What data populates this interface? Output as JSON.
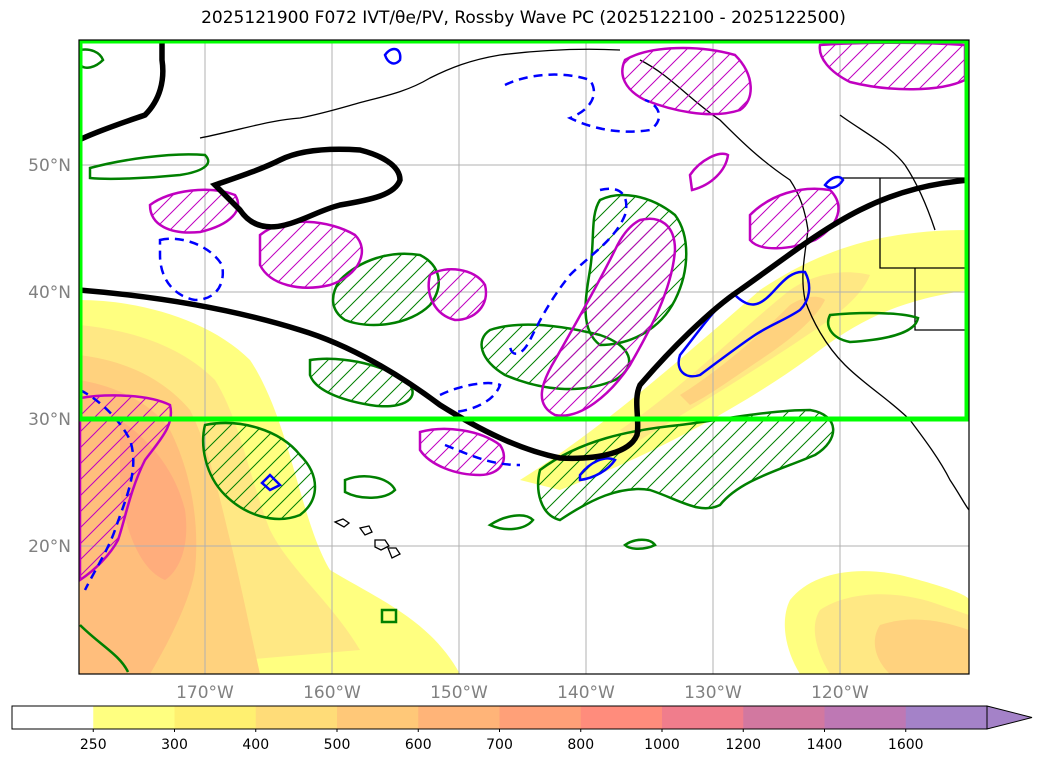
{
  "title": "2025121900 F072 IVT/θe/PV, Rossby Wave PC (2025122100 - 2025122500)",
  "lat_labels": [
    "50°N",
    "40°N",
    "30°N",
    "20°N"
  ],
  "lon_labels": [
    "170°W",
    "160°W",
    "150°W",
    "140°W",
    "130°W",
    "120°W"
  ],
  "colorbar": {
    "levels": [
      "250",
      "300",
      "400",
      "500",
      "600",
      "700",
      "800",
      "1000",
      "1200",
      "1400",
      "1600"
    ],
    "colors": [
      "#ffffff",
      "#ffff80",
      "#fff070",
      "#ffdc78",
      "#ffc878",
      "#ffb478",
      "#ffa078",
      "#ff8c7c",
      "#f07d8c",
      "#d278a0",
      "#be78b4",
      "#a482c8"
    ],
    "extend": "max"
  },
  "colors": {
    "highlight_box": "#00ff00",
    "green_contour": "#008000",
    "magenta_contour": "#c000c0",
    "blue_contour": "#0000ff",
    "black_contour": "#000000",
    "coast": "#000000"
  }
}
